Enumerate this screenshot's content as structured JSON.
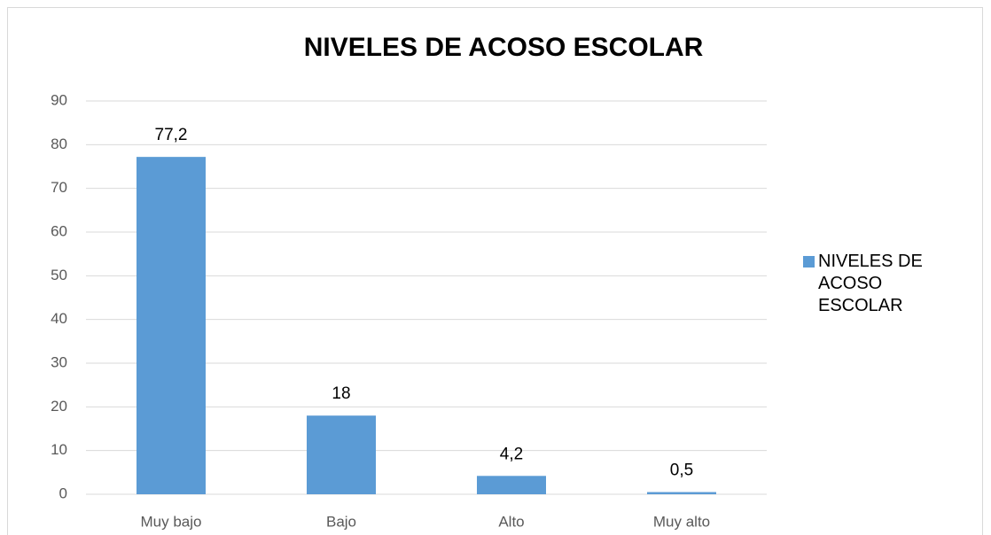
{
  "chart_data": {
    "type": "bar",
    "title": "NIVELES DE ACOSO ESCOLAR",
    "categories": [
      "Muy bajo",
      "Bajo",
      "Alto",
      "Muy alto"
    ],
    "series": [
      {
        "name": "NIVELES DE ACOSO ESCOLAR",
        "color": "#5b9bd5",
        "values": [
          77.2,
          18,
          4.2,
          0.5
        ],
        "value_labels": [
          "77,2",
          "18",
          "4,2",
          "0,5"
        ]
      }
    ],
    "ylim": [
      0,
      90
    ],
    "yticks": [
      0,
      10,
      20,
      30,
      40,
      50,
      60,
      70,
      80,
      90
    ],
    "grid": true,
    "legend": "right"
  }
}
